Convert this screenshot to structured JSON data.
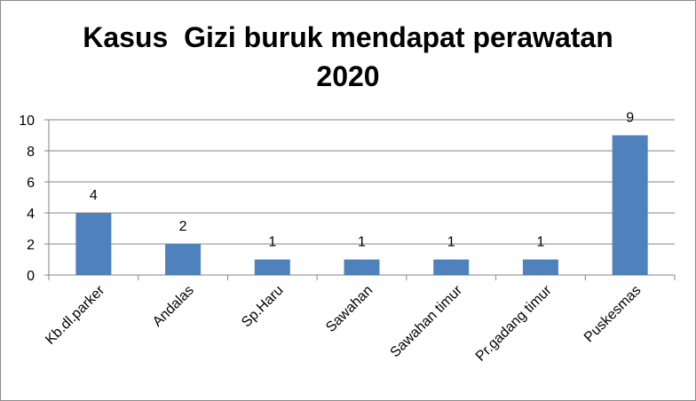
{
  "chart_data": {
    "type": "bar",
    "title_lines": [
      "Kasus  Gizi buruk mendapat perawatan",
      "2020"
    ],
    "categories": [
      "Kb.dl.parker",
      "Andalas",
      "Sp.Haru",
      "Sawahan",
      "Sawahan timur",
      "Pr.gadang timur",
      "Puskesmas"
    ],
    "values": [
      4,
      2,
      1,
      1,
      1,
      1,
      9
    ],
    "data_labels": [
      "4",
      "2",
      "1",
      "1",
      "1",
      "1",
      "9"
    ],
    "y_ticks": [
      "0",
      "2",
      "4",
      "6",
      "8",
      "10"
    ],
    "ylim": [
      0,
      10
    ],
    "xlabel": "",
    "ylabel": "",
    "grid": true,
    "legend": "none",
    "bar_color": "#4f81bd",
    "grid_color": "#868686"
  }
}
